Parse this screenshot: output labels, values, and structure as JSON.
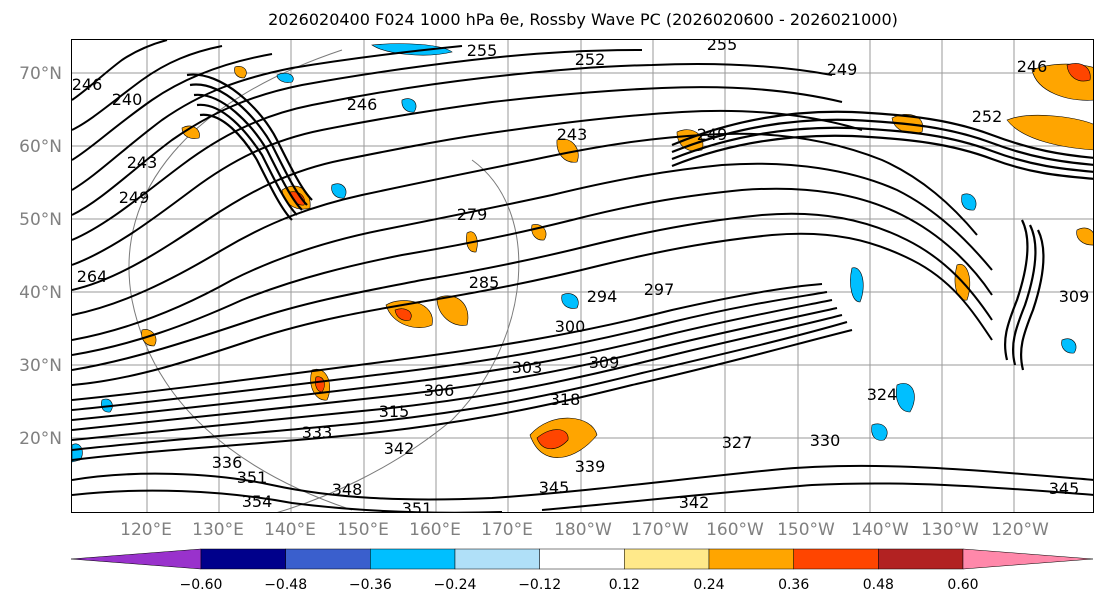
{
  "title": "2026020400 F024 1000 hPa θe, Rossby Wave PC (2026020600 - 2026021000)",
  "lat_labels": [
    "70°N",
    "60°N",
    "50°N",
    "40°N",
    "30°N",
    "20°N"
  ],
  "lon_labels": [
    "120°E",
    "130°E",
    "140°E",
    "150°E",
    "160°E",
    "170°E",
    "180°W",
    "170°W",
    "160°W",
    "150°W",
    "140°W",
    "130°W",
    "120°W"
  ],
  "contour_labels": [
    "255",
    "252",
    "255",
    "249",
    "246",
    "246",
    "243",
    "240",
    "246",
    "249",
    "243",
    "249",
    "264",
    "279",
    "285",
    "294",
    "297",
    "300",
    "303",
    "309",
    "306",
    "315",
    "318",
    "342",
    "333",
    "336",
    "339",
    "345",
    "351",
    "354",
    "348",
    "351",
    "342",
    "327",
    "330",
    "324",
    "345",
    "309",
    "252"
  ],
  "colorbar": {
    "ticks": [
      "−0.60",
      "−0.48",
      "−0.36",
      "−0.24",
      "−0.12",
      "0.12",
      "0.24",
      "0.36",
      "0.48",
      "0.60"
    ],
    "colors": [
      "#9932CC",
      "#00008B",
      "#3A5FCD",
      "#00BFFF",
      "#B0E0F8",
      "#FFFFFF",
      "#FFE98A",
      "#FFA500",
      "#FF4500",
      "#B22222",
      "#FF88AA"
    ]
  }
}
